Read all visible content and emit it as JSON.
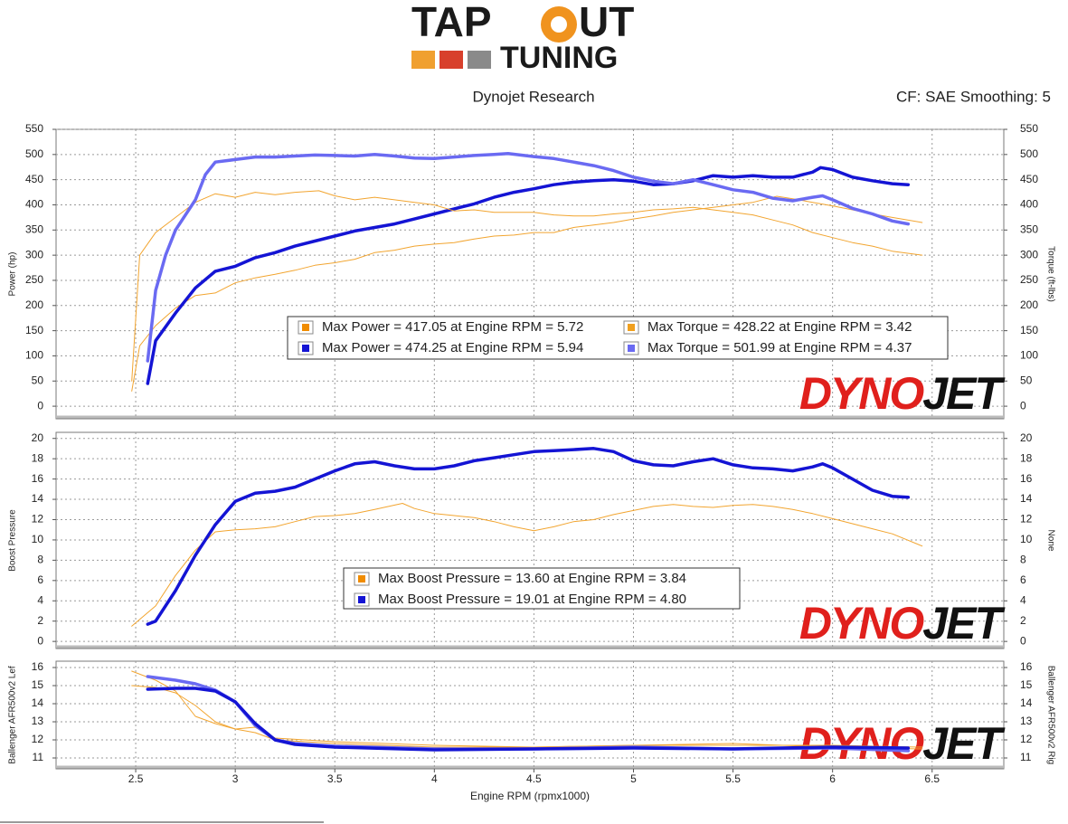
{
  "logo": [
    "TAP",
    "UT",
    "TUNING"
  ],
  "subtitle": "Dynojet Research",
  "settings_text": "CF: SAE Smoothing: 5",
  "chart_data": [
    {
      "type": "line",
      "ylabel": "Power (hp)",
      "y2label": "Torque (ft-lbs)",
      "watermark": [
        "DYNO",
        "JET"
      ],
      "grid": true,
      "xlim": [
        2.1,
        6.86
      ],
      "xticks": [
        2.5,
        3.0,
        3.5,
        4.0,
        4.5,
        5.0,
        5.5,
        6.0,
        6.5
      ],
      "ylim": [
        -25,
        550
      ],
      "yticks": [
        0,
        50,
        100,
        150,
        200,
        250,
        300,
        350,
        400,
        450,
        500,
        550
      ],
      "y2lim": [
        -25,
        550
      ],
      "y2ticks": [
        0,
        50,
        100,
        150,
        200,
        250,
        300,
        350,
        400,
        450,
        500,
        550
      ],
      "series": [
        {
          "name": "Max Power = 417.05 at Engine RPM = 5.72",
          "color": "#f2a530",
          "legend_color": "#f08c00",
          "width": 1,
          "x": [
            2.48,
            2.52,
            2.6,
            2.7,
            2.8,
            2.9,
            3.0,
            3.1,
            3.2,
            3.3,
            3.4,
            3.5,
            3.6,
            3.7,
            3.8,
            3.9,
            4.0,
            4.1,
            4.2,
            4.3,
            4.4,
            4.5,
            4.6,
            4.7,
            4.8,
            4.9,
            5.0,
            5.1,
            5.2,
            5.3,
            5.4,
            5.5,
            5.6,
            5.72,
            5.8,
            5.9,
            6.0,
            6.1,
            6.2,
            6.3,
            6.45
          ],
          "values": [
            30,
            120,
            160,
            195,
            220,
            225,
            245,
            255,
            262,
            270,
            280,
            285,
            292,
            305,
            310,
            318,
            322,
            325,
            332,
            338,
            340,
            345,
            345,
            355,
            360,
            365,
            372,
            378,
            385,
            390,
            395,
            400,
            405,
            417,
            412,
            405,
            398,
            390,
            382,
            375,
            365
          ]
        },
        {
          "name": "Max Power = 474.25 at Engine RPM = 5.94",
          "color": "#1414d4",
          "legend_color": "#1414d4",
          "width": 3.5,
          "x": [
            2.56,
            2.6,
            2.7,
            2.8,
            2.9,
            3.0,
            3.1,
            3.2,
            3.3,
            3.4,
            3.5,
            3.6,
            3.7,
            3.8,
            3.9,
            4.0,
            4.1,
            4.2,
            4.3,
            4.4,
            4.5,
            4.6,
            4.7,
            4.8,
            4.9,
            5.0,
            5.1,
            5.2,
            5.3,
            5.4,
            5.5,
            5.6,
            5.7,
            5.8,
            5.9,
            5.94,
            6.0,
            6.1,
            6.2,
            6.3,
            6.38
          ],
          "values": [
            45,
            130,
            185,
            235,
            268,
            278,
            295,
            305,
            318,
            328,
            338,
            348,
            355,
            362,
            372,
            382,
            392,
            402,
            415,
            425,
            432,
            440,
            445,
            448,
            450,
            447,
            440,
            442,
            448,
            458,
            455,
            458,
            455,
            455,
            465,
            474,
            470,
            455,
            448,
            442,
            440
          ]
        },
        {
          "name": "Max Torque = 428.22 at Engine RPM = 3.42",
          "color": "#f2a530",
          "legend_color": "#f0a020",
          "width": 1,
          "axis": "y2",
          "x": [
            2.48,
            2.52,
            2.6,
            2.7,
            2.8,
            2.9,
            3.0,
            3.1,
            3.2,
            3.3,
            3.42,
            3.5,
            3.6,
            3.7,
            3.8,
            3.9,
            4.0,
            4.1,
            4.2,
            4.3,
            4.4,
            4.5,
            4.6,
            4.7,
            4.8,
            4.9,
            5.0,
            5.1,
            5.2,
            5.3,
            5.4,
            5.5,
            5.6,
            5.7,
            5.8,
            5.9,
            6.0,
            6.1,
            6.2,
            6.3,
            6.45
          ],
          "values": [
            50,
            300,
            345,
            375,
            405,
            422,
            415,
            425,
            420,
            425,
            428,
            418,
            410,
            415,
            410,
            405,
            400,
            388,
            390,
            385,
            385,
            385,
            380,
            378,
            378,
            382,
            385,
            390,
            392,
            395,
            390,
            385,
            380,
            370,
            360,
            345,
            335,
            325,
            318,
            308,
            300
          ]
        },
        {
          "name": "Max Torque = 501.99 at Engine RPM = 4.37",
          "color": "#6a6af2",
          "legend_color": "#6a6af2",
          "width": 3.5,
          "axis": "y2",
          "x": [
            2.56,
            2.6,
            2.65,
            2.7,
            2.8,
            2.85,
            2.9,
            3.0,
            3.1,
            3.2,
            3.3,
            3.4,
            3.5,
            3.6,
            3.7,
            3.8,
            3.9,
            4.0,
            4.1,
            4.2,
            4.3,
            4.37,
            4.5,
            4.6,
            4.7,
            4.8,
            4.9,
            5.0,
            5.1,
            5.2,
            5.3,
            5.4,
            5.5,
            5.6,
            5.7,
            5.8,
            5.9,
            5.95,
            6.0,
            6.1,
            6.2,
            6.3,
            6.38
          ],
          "values": [
            90,
            230,
            300,
            350,
            410,
            460,
            485,
            490,
            495,
            495,
            497,
            499,
            498,
            497,
            500,
            497,
            493,
            492,
            495,
            498,
            500,
            502,
            496,
            492,
            485,
            478,
            468,
            455,
            447,
            442,
            450,
            440,
            430,
            425,
            413,
            408,
            415,
            418,
            410,
            393,
            382,
            368,
            362
          ]
        }
      ]
    },
    {
      "type": "line",
      "ylabel": "Boost Pressure",
      "y2label": "None",
      "watermark": [
        "DYNO",
        "JET"
      ],
      "grid": true,
      "xlim": [
        2.1,
        6.86
      ],
      "xticks": [
        2.5,
        3.0,
        3.5,
        4.0,
        4.5,
        5.0,
        5.5,
        6.0,
        6.5
      ],
      "ylim": [
        -0.7,
        20.6
      ],
      "yticks": [
        0,
        2,
        4,
        6,
        8,
        10,
        12,
        14,
        16,
        18,
        20
      ],
      "y2lim": [
        -0.7,
        20.6
      ],
      "y2ticks": [
        0,
        2,
        4,
        6,
        8,
        10,
        12,
        14,
        16,
        18,
        20
      ],
      "series": [
        {
          "name": "Max Boost Pressure = 13.60 at Engine RPM = 3.84",
          "color": "#f2a530",
          "legend_color": "#f08c00",
          "width": 1,
          "x": [
            2.48,
            2.6,
            2.7,
            2.8,
            2.9,
            3.0,
            3.1,
            3.2,
            3.3,
            3.4,
            3.5,
            3.6,
            3.7,
            3.84,
            3.9,
            4.0,
            4.1,
            4.2,
            4.3,
            4.4,
            4.5,
            4.6,
            4.7,
            4.8,
            4.9,
            5.0,
            5.1,
            5.2,
            5.3,
            5.4,
            5.5,
            5.6,
            5.7,
            5.8,
            5.9,
            6.0,
            6.1,
            6.2,
            6.3,
            6.45
          ],
          "values": [
            1.5,
            3.5,
            6.5,
            9,
            10.8,
            11,
            11.1,
            11.3,
            11.8,
            12.3,
            12.4,
            12.6,
            13,
            13.6,
            13.1,
            12.6,
            12.4,
            12.2,
            11.8,
            11.3,
            10.9,
            11.3,
            11.8,
            12.0,
            12.5,
            12.9,
            13.3,
            13.5,
            13.3,
            13.2,
            13.4,
            13.5,
            13.3,
            13.0,
            12.6,
            12.1,
            11.6,
            11.1,
            10.6,
            9.4
          ]
        },
        {
          "name": "Max Boost Pressure = 19.01 at Engine RPM = 4.80",
          "color": "#1414d4",
          "legend_color": "#1414d4",
          "width": 3.5,
          "x": [
            2.56,
            2.6,
            2.7,
            2.8,
            2.9,
            3.0,
            3.1,
            3.2,
            3.3,
            3.4,
            3.5,
            3.6,
            3.7,
            3.8,
            3.9,
            4.0,
            4.1,
            4.2,
            4.3,
            4.4,
            4.5,
            4.6,
            4.7,
            4.8,
            4.9,
            5.0,
            5.1,
            5.2,
            5.3,
            5.4,
            5.5,
            5.6,
            5.7,
            5.8,
            5.9,
            5.95,
            6.0,
            6.1,
            6.2,
            6.3,
            6.38
          ],
          "values": [
            1.7,
            2.0,
            5,
            8.5,
            11.5,
            13.8,
            14.6,
            14.8,
            15.2,
            16,
            16.8,
            17.5,
            17.7,
            17.3,
            17,
            17,
            17.3,
            17.8,
            18.1,
            18.4,
            18.7,
            18.8,
            18.9,
            19.01,
            18.7,
            17.8,
            17.4,
            17.3,
            17.7,
            18,
            17.4,
            17.1,
            17,
            16.8,
            17.2,
            17.5,
            17.1,
            16,
            14.9,
            14.3,
            14.2
          ]
        }
      ]
    },
    {
      "type": "line",
      "ylabel": "Ballenger AFR500v2 Lef",
      "y2label": "Ballenger AFR500v2 Rig",
      "xlabel": "Engine RPM (rpmx1000)",
      "watermark": [
        "DYNO",
        "JET"
      ],
      "grid": true,
      "xlim": [
        2.1,
        6.86
      ],
      "xticks": [
        2.5,
        3.0,
        3.5,
        4.0,
        4.5,
        5.0,
        5.5,
        6.0,
        6.5
      ],
      "ylim": [
        10.4,
        16.35
      ],
      "yticks": [
        11,
        12,
        13,
        14,
        15,
        16
      ],
      "y2lim": [
        10.4,
        16.35
      ],
      "y2ticks": [
        11,
        12,
        13,
        14,
        15,
        16
      ],
      "series": [
        {
          "color": "#f2a530",
          "width": 1,
          "x": [
            2.48,
            2.6,
            2.7,
            2.8,
            2.9,
            3.0,
            3.1,
            3.2,
            3.5,
            4.0,
            4.5,
            5.0,
            5.5,
            6.0,
            6.45
          ],
          "values": [
            15.8,
            15.3,
            14.7,
            13.3,
            12.9,
            12.6,
            12.4,
            12.0,
            11.8,
            11.6,
            11.6,
            11.7,
            11.7,
            11.7,
            11.6
          ]
        },
        {
          "color": "#f2a530",
          "width": 1,
          "x": [
            2.48,
            2.6,
            2.7,
            2.8,
            2.9,
            3.0,
            3.1,
            3.2,
            3.5,
            4.0,
            4.5,
            5.0,
            5.5,
            6.0,
            6.45
          ],
          "values": [
            15.0,
            14.9,
            14.6,
            13.9,
            13.0,
            12.6,
            12.7,
            12.1,
            11.9,
            11.7,
            11.6,
            11.7,
            11.8,
            11.6,
            11.5
          ]
        },
        {
          "color": "#6a6af2",
          "width": 3.5,
          "x": [
            2.56,
            2.7,
            2.8,
            2.9,
            3.0,
            3.1,
            3.2,
            3.3,
            3.5,
            4.0,
            4.5,
            5.0,
            5.5,
            6.0,
            6.38
          ],
          "values": [
            15.5,
            15.3,
            15.1,
            14.75,
            14.1,
            12.8,
            12.0,
            11.8,
            11.65,
            11.5,
            11.5,
            11.6,
            11.5,
            11.55,
            11.4
          ]
        },
        {
          "color": "#1414d4",
          "width": 3.5,
          "x": [
            2.56,
            2.7,
            2.8,
            2.9,
            3.0,
            3.1,
            3.2,
            3.3,
            3.5,
            4.0,
            4.5,
            5.0,
            5.5,
            6.0,
            6.38
          ],
          "values": [
            14.8,
            14.85,
            14.85,
            14.7,
            14.1,
            12.9,
            12.0,
            11.75,
            11.6,
            11.45,
            11.5,
            11.55,
            11.5,
            11.6,
            11.55
          ]
        }
      ]
    }
  ]
}
